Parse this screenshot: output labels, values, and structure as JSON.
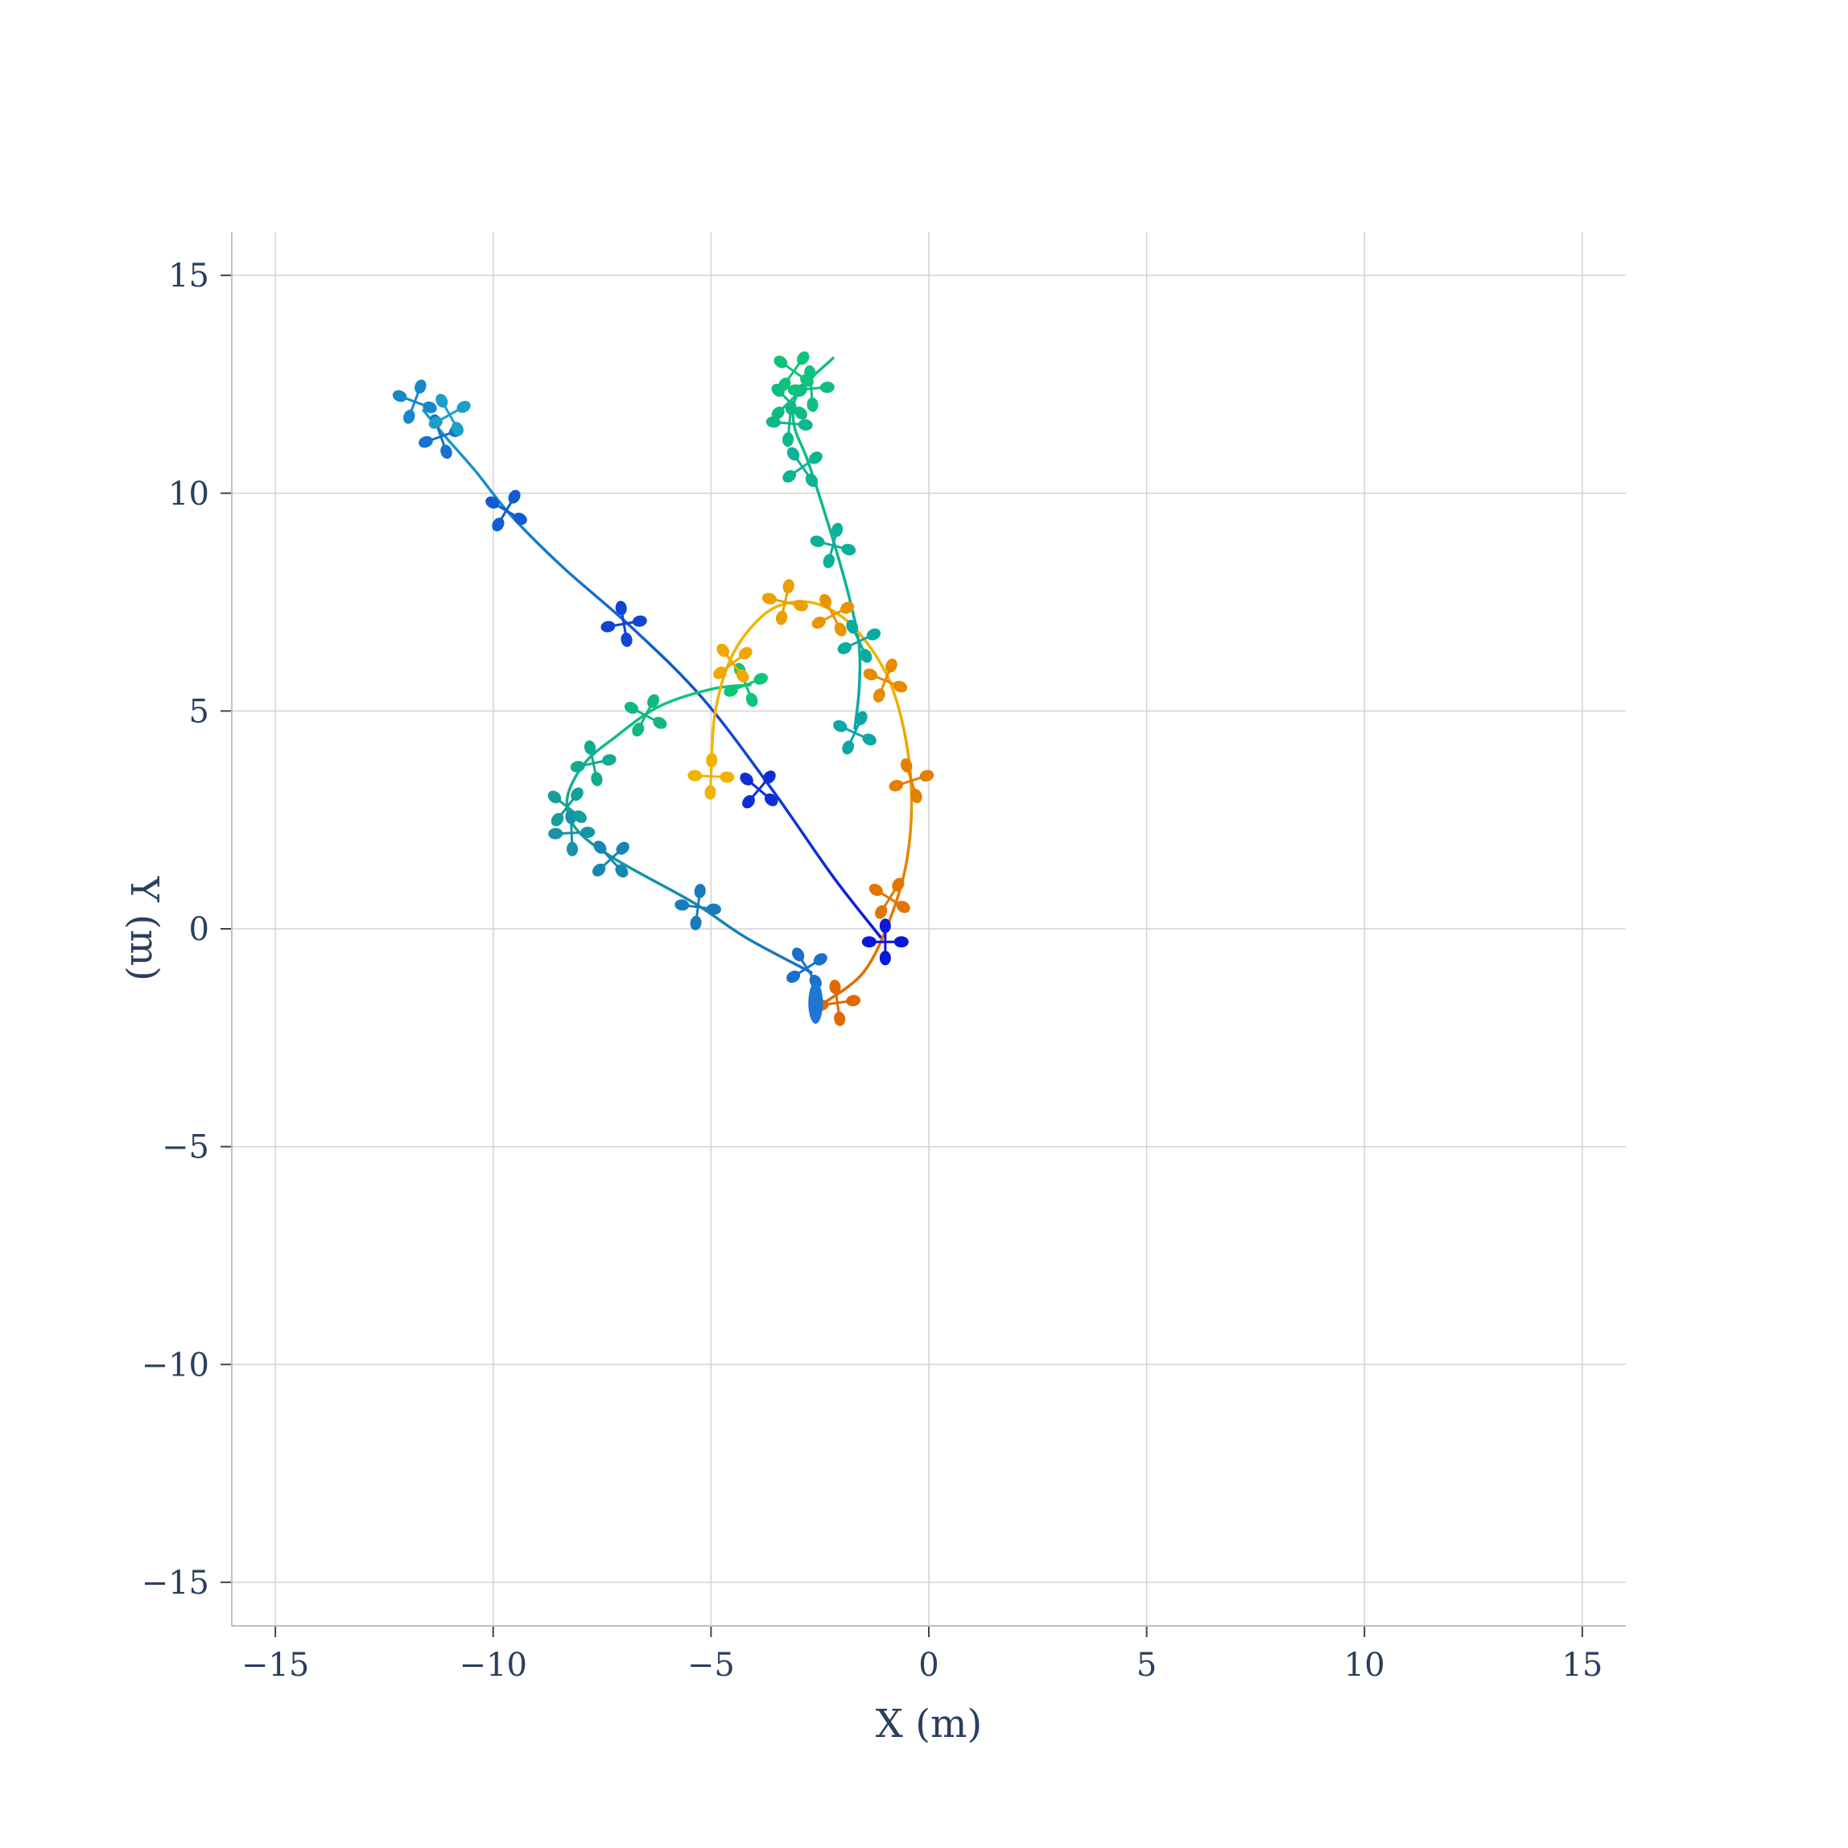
{
  "chart_data": {
    "type": "line",
    "xlabel": "X (m)",
    "ylabel": "Y (m)",
    "xlim": [
      -16,
      16
    ],
    "ylim": [
      -16,
      16
    ],
    "xticks": [
      -15,
      -10,
      -5,
      0,
      5,
      10,
      15
    ],
    "yticks": [
      -15,
      -10,
      -5,
      0,
      5,
      10,
      15
    ],
    "tick_labels_x": [
      "−15",
      "−10",
      "−5",
      "0",
      "5",
      "10",
      "15"
    ],
    "tick_labels_y": [
      "−15",
      "−10",
      "−5",
      "0",
      "5",
      "10",
      "15"
    ],
    "grid": true,
    "legend": "none",
    "origin_marker": {
      "x": -2.6,
      "y": -1.7,
      "color": "#1f77d4"
    },
    "series": [
      {
        "color_start": "#0a17d8",
        "color_end": "#1aa0c8",
        "points": [
          [
            -1.1,
            -0.2
          ],
          [
            -2.2,
            1.2
          ],
          [
            -3.6,
            3.2
          ],
          [
            -5.2,
            5.3
          ],
          [
            -6.8,
            6.9
          ],
          [
            -8.4,
            8.3
          ],
          [
            -9.6,
            9.5
          ],
          [
            -10.4,
            10.5
          ],
          [
            -11.1,
            11.3
          ],
          [
            -11.6,
            11.9
          ]
        ],
        "marker_points": [
          [
            -1.0,
            -0.3
          ],
          [
            -3.9,
            3.2
          ],
          [
            -7.0,
            7.0
          ],
          [
            -9.7,
            9.6
          ],
          [
            -11.2,
            11.3
          ],
          [
            -11.8,
            12.1
          ],
          [
            -11.0,
            11.8
          ]
        ]
      },
      {
        "color_start": "#1a6fc8",
        "color_end": "#10c37a",
        "points": [
          [
            -2.7,
            -1.0
          ],
          [
            -4.2,
            -0.2
          ],
          [
            -5.4,
            0.6
          ],
          [
            -7.2,
            1.6
          ],
          [
            -8.1,
            2.3
          ],
          [
            -8.3,
            3.0
          ],
          [
            -7.9,
            3.8
          ],
          [
            -7.2,
            4.4
          ],
          [
            -6.2,
            5.1
          ],
          [
            -5.0,
            5.5
          ],
          [
            -4.1,
            5.6
          ]
        ],
        "marker_points": [
          [
            -2.8,
            -0.9
          ],
          [
            -5.3,
            0.5
          ],
          [
            -7.3,
            1.6
          ],
          [
            -8.2,
            2.2
          ],
          [
            -8.3,
            2.8
          ],
          [
            -7.7,
            3.8
          ],
          [
            -6.5,
            4.9
          ],
          [
            -4.2,
            5.6
          ]
        ]
      },
      {
        "color_start": "#0aa7a7",
        "color_end": "#10c37a",
        "points": [
          [
            -1.7,
            4.6
          ],
          [
            -1.6,
            5.5
          ],
          [
            -1.6,
            6.5
          ],
          [
            -1.8,
            7.5
          ],
          [
            -2.1,
            8.6
          ],
          [
            -2.5,
            9.9
          ],
          [
            -2.8,
            10.8
          ],
          [
            -3.1,
            11.6
          ],
          [
            -3.0,
            12.3
          ],
          [
            -2.2,
            13.1
          ]
        ],
        "marker_points": [
          [
            -1.7,
            4.5
          ],
          [
            -1.6,
            6.6
          ],
          [
            -2.2,
            8.8
          ],
          [
            -2.9,
            10.6
          ],
          [
            -3.2,
            11.6
          ],
          [
            -3.2,
            12.1
          ],
          [
            -2.7,
            12.4
          ],
          [
            -3.1,
            12.8
          ]
        ]
      },
      {
        "color_start": "#e06a00",
        "color_end": "#f0b400",
        "points": [
          [
            -2.4,
            -1.7
          ],
          [
            -1.5,
            -1.0
          ],
          [
            -0.9,
            0.2
          ],
          [
            -0.5,
            1.6
          ],
          [
            -0.4,
            3.2
          ],
          [
            -0.6,
            4.7
          ],
          [
            -1.0,
            5.9
          ],
          [
            -1.7,
            6.9
          ],
          [
            -2.4,
            7.4
          ],
          [
            -3.1,
            7.5
          ],
          [
            -3.8,
            7.2
          ],
          [
            -4.5,
            6.3
          ],
          [
            -4.9,
            5.0
          ],
          [
            -5.0,
            3.6
          ]
        ],
        "marker_points": [
          [
            -2.1,
            -1.7
          ],
          [
            -0.9,
            0.7
          ],
          [
            -0.4,
            3.4
          ],
          [
            -1.0,
            5.7
          ],
          [
            -2.2,
            7.2
          ],
          [
            -3.3,
            7.5
          ],
          [
            -4.5,
            6.1
          ],
          [
            -5.0,
            3.5
          ]
        ]
      }
    ]
  }
}
